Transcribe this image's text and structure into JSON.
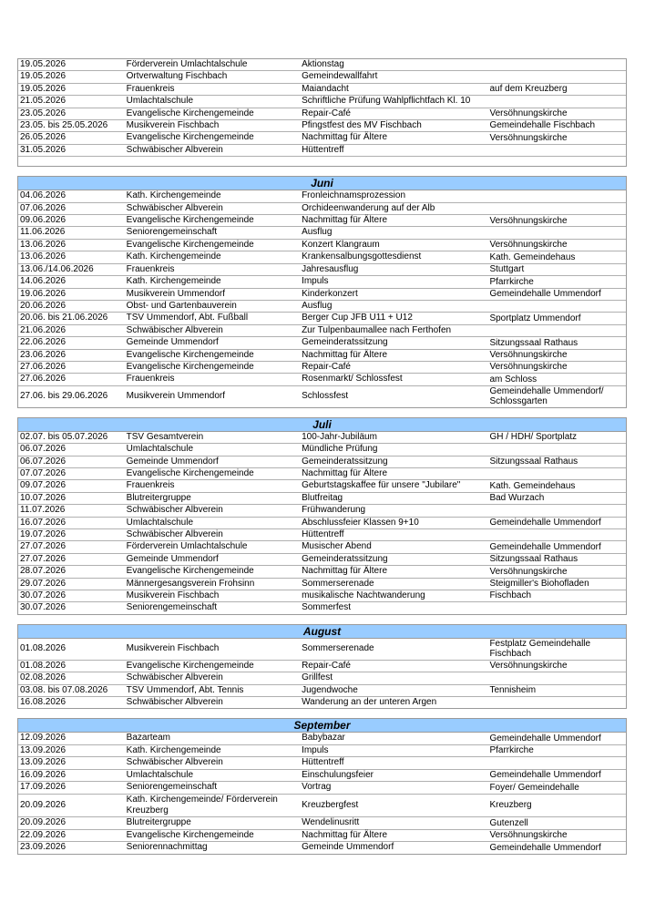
{
  "sections": [
    {
      "month": "",
      "rows": [
        [
          "19.05.2026",
          "Förderverein Umlachtalschule",
          "Aktionstag",
          ""
        ],
        [
          "19.05.2026",
          "Ortverwaltung Fischbach",
          "Gemeindewallfahrt",
          ""
        ],
        [
          "19.05.2026",
          "Frauenkreis",
          "Maiandacht",
          "auf dem Kreuzberg"
        ],
        [
          "21.05.2026",
          "Umlachtalschule",
          "Schriftliche Prüfung Wahlpflichtfach Kl. 10",
          ""
        ],
        [
          "23.05.2026",
          "Evangelische Kirchengemeinde",
          "Repair-Café",
          "Versöhnungskirche"
        ],
        [
          "23.05. bis 25.05.2026",
          "Musikverein Fischbach",
          "Pfingstfest des MV Fischbach",
          "Gemeindehalle Fischbach"
        ],
        [
          "26.05.2026",
          "Evangelische Kirchengemeinde",
          "Nachmittag für Ältere",
          "Versöhnungskirche"
        ],
        [
          "31.05.2026",
          "Schwäbischer Albverein",
          "Hüttentreff",
          ""
        ]
      ]
    },
    {
      "month": "Juni",
      "rows": [
        [
          "04.06.2026",
          "Kath. Kirchengemeinde",
          "Fronleichnamsprozession",
          ""
        ],
        [
          "07.06.2026",
          "Schwäbischer Albverein",
          "Orchideenwanderung auf der Alb",
          ""
        ],
        [
          "09.06.2026",
          "Evangelische Kirchengemeinde",
          "Nachmittag für Ältere",
          "Versöhnungskirche"
        ],
        [
          "11.06.2026",
          "Seniorengemeinschaft",
          "Ausflug",
          ""
        ],
        [
          "13.06.2026",
          "Evangelische Kirchengemeinde",
          "Konzert Klangraum",
          "Versöhnungskirche"
        ],
        [
          "13.06.2026",
          "Kath. Kirchengemeinde",
          "Krankensalbungsgottesdienst",
          "Kath. Gemeindehaus"
        ],
        [
          "13.06./14.06.2026",
          "Frauenkreis",
          "Jahresausflug",
          "Stuttgart"
        ],
        [
          "14.06.2026",
          "Kath. Kirchengemeinde",
          "Impuls",
          "Pfarrkirche"
        ],
        [
          "19.06.2026",
          "Musikverein Ummendorf",
          "Kinderkonzert",
          "Gemeindehalle Ummendorf"
        ],
        [
          "20.06.2026",
          "Obst- und Gartenbauverein",
          "Ausflug",
          ""
        ],
        [
          "20.06. bis 21.06.2026",
          "TSV Ummendorf, Abt. Fußball",
          "Berger Cup JFB U11 + U12",
          "Sportplatz Ummendorf"
        ],
        [
          "21.06.2026",
          "Schwäbischer Albverein",
          "Zur Tulpenbaumallee nach Ferthofen",
          ""
        ],
        [
          "22.06.2026",
          "Gemeinde Ummendorf",
          "Gemeinderatssitzung",
          "Sitzungssaal Rathaus"
        ],
        [
          "23.06.2026",
          "Evangelische Kirchengemeinde",
          "Nachmittag für Ältere",
          "Versöhnungskirche"
        ],
        [
          "27.06.2026",
          "Evangelische Kirchengemeinde",
          "Repair-Café",
          "Versöhnungskirche"
        ],
        [
          "27.06.2026",
          "Frauenkreis",
          "Rosenmarkt/ Schlossfest",
          "am Schloss"
        ],
        [
          "27.06. bis 29.06.2026",
          "Musikverein Ummendorf",
          "Schlossfest",
          "Gemeindehalle Ummendorf/ Schlossgarten"
        ]
      ]
    },
    {
      "month": "Juli",
      "rows": [
        [
          "02.07. bis 05.07.2026",
          "TSV Gesamtverein",
          "100-Jahr-Jubiläum",
          "GH / HDH/ Sportplatz"
        ],
        [
          "06.07.2026",
          "Umlachtalschule",
          "Mündliche Prüfung",
          ""
        ],
        [
          "06.07.2026",
          "Gemeinde Ummendorf",
          "Gemeinderatssitzung",
          "Sitzungssaal Rathaus"
        ],
        [
          "07.07.2026",
          "Evangelische Kirchengemeinde",
          "Nachmittag für Ältere",
          ""
        ],
        [
          "09.07.2026",
          "Frauenkreis",
          "Geburtstagskaffee für unsere \"Jubilare\"",
          "Kath. Gemeindehaus"
        ],
        [
          "10.07.2026",
          "Blutreitergruppe",
          "Blutfreitag",
          "Bad Wurzach"
        ],
        [
          "11.07.2026",
          "Schwäbischer Albverein",
          "Frühwanderung",
          ""
        ],
        [
          "16.07.2026",
          "Umlachtalschule",
          "Abschlussfeier Klassen 9+10",
          "Gemeindehalle Ummendorf"
        ],
        [
          "19.07.2026",
          "Schwäbischer Albverein",
          "Hüttentreff",
          ""
        ],
        [
          "27.07.2026",
          "Förderverein Umlachtalschule",
          "Musischer Abend",
          "Gemeindehalle Ummendorf"
        ],
        [
          "27.07.2026",
          "Gemeinde Ummendorf",
          "Gemeinderatssitzung",
          "Sitzungssaal Rathaus"
        ],
        [
          "28.07.2026",
          "Evangelische Kirchengemeinde",
          "Nachmittag für Ältere",
          "Versöhnungskirche"
        ],
        [
          "29.07.2026",
          "Männergesangsverein Frohsinn",
          "Sommerserenade",
          "Steigmiller's Biohofladen"
        ],
        [
          "30.07.2026",
          "Musikverein Fischbach",
          "musikalische Nachtwanderung",
          "Fischbach"
        ],
        [
          "30.07.2026",
          "Seniorengemeinschaft",
          "Sommerfest",
          ""
        ]
      ]
    },
    {
      "month": "August",
      "rows": [
        [
          "01.08.2026",
          "Musikverein Fischbach",
          "Sommerserenade",
          "Festplatz Gemeindehalle Fischbach"
        ],
        [
          "01.08.2026",
          "Evangelische Kirchengemeinde",
          "Repair-Café",
          "Versöhnungskirche"
        ],
        [
          "02.08.2026",
          "Schwäbischer Albverein",
          "Grillfest",
          ""
        ],
        [
          "03.08. bis 07.08.2026",
          "TSV Ummendorf, Abt. Tennis",
          "Jugendwoche",
          "Tennisheim"
        ],
        [
          "16.08.2026",
          "Schwäbischer Albverein",
          "Wanderung an der unteren Argen",
          ""
        ]
      ]
    },
    {
      "month": "September",
      "rows": [
        [
          "12.09.2026",
          "Bazarteam",
          "Babybazar",
          "Gemeindehalle Ummendorf"
        ],
        [
          "13.09.2026",
          "Kath. Kirchengemeinde",
          "Impuls",
          "Pfarrkirche"
        ],
        [
          "13.09.2026",
          "Schwäbischer Albverein",
          "Hüttentreff",
          ""
        ],
        [
          "16.09.2026",
          "Umlachtalschule",
          "Einschulungsfeier",
          "Gemeindehalle Ummendorf"
        ],
        [
          "17.09.2026",
          "Seniorengemeinschaft",
          "Vortrag",
          "Foyer/ Gemeindehalle"
        ],
        [
          "20.09.2026",
          "Kath. Kirchengemeinde/ Förderverein Kreuzberg",
          "Kreuzbergfest",
          "Kreuzberg"
        ],
        [
          "20.09.2026",
          "Blutreitergruppe",
          "Wendelinusritt",
          "Gutenzell"
        ],
        [
          "22.09.2026",
          "Evangelische Kirchengemeinde",
          "Nachmittag für Ältere",
          "Versöhnungskirche"
        ],
        [
          "23.09.2026",
          "Seniorennachmittag",
          "Gemeinde Ummendorf",
          "Gemeindehalle Ummendorf"
        ]
      ]
    }
  ]
}
